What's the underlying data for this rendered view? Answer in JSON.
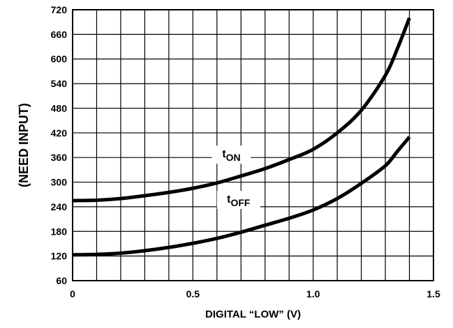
{
  "chart_data": {
    "type": "line",
    "title": "",
    "xlabel": "DIGITAL “LOW” (V)",
    "ylabel": "(NEED INPUT)",
    "xlim": [
      0,
      1.5
    ],
    "ylim": [
      60,
      720
    ],
    "x_ticks": [
      0,
      0.5,
      1.0,
      1.5
    ],
    "x_tick_labels": [
      "0",
      "0.5",
      "1.0",
      "1.5"
    ],
    "y_ticks": [
      60,
      120,
      180,
      240,
      300,
      360,
      420,
      480,
      540,
      600,
      660,
      720
    ],
    "y_tick_labels": [
      "60",
      "120",
      "180",
      "240",
      "300",
      "360",
      "420",
      "480",
      "540",
      "600",
      "660",
      "720"
    ],
    "grid": true,
    "series": [
      {
        "name": "t_ON",
        "label_main": "t",
        "label_sub": "ON",
        "color": "#000000",
        "x": [
          0,
          0.1,
          0.2,
          0.3,
          0.4,
          0.5,
          0.6,
          0.7,
          0.8,
          0.9,
          1.0,
          1.1,
          1.2,
          1.3,
          1.35,
          1.4
        ],
        "y": [
          255,
          256,
          260,
          267,
          275,
          285,
          298,
          315,
          333,
          355,
          380,
          420,
          475,
          560,
          625,
          700
        ]
      },
      {
        "name": "t_OFF",
        "label_main": "t",
        "label_sub": "OFF",
        "color": "#000000",
        "x": [
          0,
          0.1,
          0.2,
          0.3,
          0.4,
          0.5,
          0.6,
          0.7,
          0.8,
          0.9,
          1.0,
          1.1,
          1.2,
          1.3,
          1.35,
          1.4
        ],
        "y": [
          123,
          124,
          127,
          133,
          141,
          151,
          163,
          178,
          195,
          212,
          232,
          260,
          297,
          340,
          375,
          410
        ]
      }
    ]
  }
}
